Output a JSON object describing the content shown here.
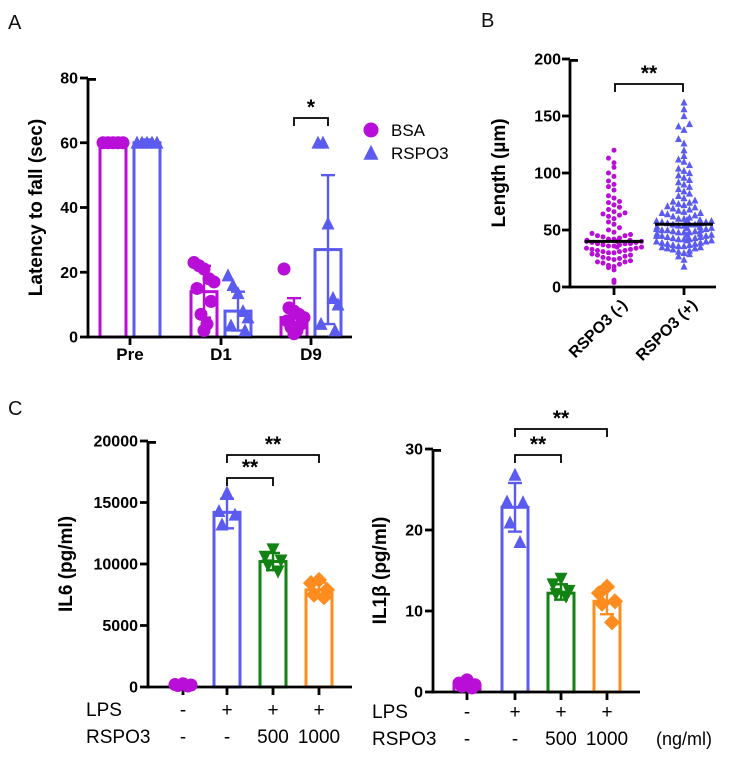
{
  "figure": {
    "panel_a_label": "A",
    "panel_b_label": "B",
    "panel_c_label": "C"
  },
  "palette": {
    "magenta": "#B80ED8",
    "blue": "#5B5BF0",
    "green": "#128212",
    "orange": "#FF8C1E",
    "axis": "#000000"
  },
  "chart_data": [
    {
      "id": "latency",
      "type": "bar",
      "title": "",
      "ylabel": "Latency to fall (sec)",
      "ylim": [
        0,
        80
      ],
      "yticks": [
        0,
        20,
        40,
        60,
        80
      ],
      "categories": [
        "Pre",
        "D1",
        "D9"
      ],
      "legend": [
        {
          "label": "BSA",
          "marker": "circle",
          "color": "magenta"
        },
        {
          "label": "RSPO3",
          "marker": "triangle",
          "color": "blue"
        }
      ],
      "series": [
        {
          "name": "BSA",
          "marker": "circle",
          "color": "magenta",
          "bars": [
            60,
            14,
            6
          ],
          "errors": [
            [
              59,
              61
            ],
            [
              6,
              22
            ],
            [
              0,
              12
            ]
          ],
          "points": [
            [
              60,
              60,
              60,
              60,
              60
            ],
            [
              23,
              22,
              21,
              18,
              17,
              15,
              11,
              7,
              4,
              2
            ],
            [
              21,
              9,
              8,
              7,
              6,
              5,
              4,
              3,
              2,
              1
            ]
          ]
        },
        {
          "name": "RSPO3",
          "marker": "triangle",
          "color": "blue",
          "bars": [
            60,
            8,
            27
          ],
          "errors": [
            [
              59,
              61
            ],
            [
              2,
              14
            ],
            [
              4,
              50
            ]
          ],
          "points": [
            [
              60,
              60,
              60,
              60,
              60
            ],
            [
              19,
              16,
              13.5,
              8,
              6,
              3.5,
              2
            ],
            [
              60,
              60,
              35,
              12,
              10,
              4,
              2
            ]
          ]
        }
      ],
      "significance": [
        {
          "label": "*",
          "category": "D9"
        }
      ]
    },
    {
      "id": "length",
      "type": "scatter",
      "title": "",
      "ylabel": "Length (µm)",
      "ylim": [
        0,
        200
      ],
      "yticks": [
        0,
        50,
        100,
        150,
        200
      ],
      "groups": [
        {
          "label": "RSPO3 (-)",
          "marker": "circle",
          "color": "magenta",
          "median": 40,
          "values": [
            4,
            6,
            15,
            17,
            18,
            19,
            20,
            21,
            22,
            22,
            23,
            24,
            25,
            25,
            26,
            27,
            28,
            28,
            29,
            30,
            30,
            31,
            31,
            32,
            32,
            33,
            33,
            34,
            34,
            35,
            35,
            36,
            36,
            37,
            37,
            38,
            38,
            38,
            39,
            39,
            40,
            40,
            40,
            41,
            41,
            42,
            42,
            43,
            44,
            45,
            45,
            46,
            47,
            48,
            50,
            52,
            55,
            57,
            60,
            62,
            63,
            64,
            65,
            66,
            68,
            70,
            72,
            74,
            75,
            78,
            80,
            85,
            88,
            90,
            93,
            97,
            100,
            105,
            109,
            113,
            120
          ]
        },
        {
          "label": "RSPO3 (+)",
          "marker": "triangle",
          "color": "blue",
          "median": 55,
          "values": [
            18,
            24,
            27,
            29,
            30,
            31,
            32,
            33,
            34,
            34,
            35,
            35,
            36,
            36,
            37,
            37,
            38,
            38,
            39,
            39,
            40,
            40,
            41,
            41,
            42,
            42,
            42,
            43,
            43,
            44,
            44,
            45,
            45,
            45,
            46,
            46,
            47,
            47,
            48,
            48,
            48,
            49,
            49,
            50,
            50,
            50,
            51,
            51,
            52,
            52,
            53,
            53,
            54,
            54,
            55,
            55,
            55,
            56,
            56,
            57,
            57,
            58,
            58,
            59,
            59,
            60,
            60,
            61,
            62,
            63,
            64,
            65,
            65,
            66,
            67,
            68,
            69,
            70,
            71,
            72,
            73,
            74,
            75,
            76,
            78,
            80,
            82,
            84,
            86,
            88,
            90,
            92,
            94,
            96,
            98,
            100,
            102,
            104,
            107,
            110,
            112,
            115,
            120,
            126,
            130,
            138,
            141,
            143,
            150,
            156,
            162
          ]
        }
      ],
      "significance": [
        {
          "label": "**",
          "g1": 0,
          "g2": 1
        }
      ]
    },
    {
      "id": "il6",
      "type": "bar",
      "title": "",
      "ylabel": "IL6 (pg/ml)",
      "ylim": [
        0,
        20000
      ],
      "yticks": [
        0,
        5000,
        10000,
        15000,
        20000
      ],
      "groups": [
        {
          "marker": "circle",
          "color": "magenta",
          "bar": 150,
          "err": null,
          "points": [
            260,
            200,
            160,
            120,
            80
          ]
        },
        {
          "marker": "triangle",
          "color": "blue",
          "bar": 14200,
          "err": [
            12900,
            15300
          ],
          "points": [
            15800,
            14300,
            14000,
            13200
          ]
        },
        {
          "marker": "triangle-down",
          "color": "green",
          "bar": 10200,
          "err": [
            9500,
            10900
          ],
          "points": [
            11200,
            10600,
            10300,
            9900,
            9400
          ]
        },
        {
          "marker": "diamond",
          "color": "orange",
          "bar": 7900,
          "err": [
            7400,
            8500
          ],
          "points": [
            8700,
            8450,
            7900,
            7500,
            7300
          ]
        }
      ],
      "xrows": [
        {
          "label": "LPS",
          "values": [
            "-",
            "+",
            "+",
            "+"
          ]
        },
        {
          "label": "RSPO3",
          "values": [
            "-",
            "-",
            "500",
            "1000"
          ]
        }
      ],
      "significance": [
        {
          "label": "**",
          "g1": 1,
          "g2": 2
        },
        {
          "label": "**",
          "g1": 1,
          "g2": 3
        }
      ]
    },
    {
      "id": "il1b",
      "type": "bar",
      "title": "",
      "ylabel": "IL1β (pg/ml)",
      "ylim": [
        0,
        30
      ],
      "yticks": [
        0,
        10,
        20,
        30
      ],
      "groups": [
        {
          "marker": "circle",
          "color": "magenta",
          "bar": 0.8,
          "err": null,
          "points": [
            1.5,
            1.1,
            0.9,
            0.7,
            0.5
          ]
        },
        {
          "marker": "triangle",
          "color": "blue",
          "bar": 22.8,
          "err": [
            19.8,
            25.8
          ],
          "points": [
            26.8,
            23.5,
            23.4,
            20.9,
            18.5
          ]
        },
        {
          "marker": "triangle-down",
          "color": "green",
          "bar": 12.2,
          "err": [
            11.4,
            13.3
          ],
          "points": [
            14.0,
            13.3,
            12.5,
            12.1,
            11.8
          ]
        },
        {
          "marker": "diamond",
          "color": "orange",
          "bar": 11.2,
          "err": [
            9.6,
            12.9
          ],
          "points": [
            13.0,
            12.2,
            11.2,
            10.9,
            8.6
          ]
        }
      ],
      "xrows": [
        {
          "label": "LPS",
          "values": [
            "-",
            "+",
            "+",
            "+"
          ]
        },
        {
          "label": "RSPO3",
          "values": [
            "-",
            "-",
            "500",
            "1000"
          ],
          "suffix": "(ng/ml)"
        }
      ],
      "significance": [
        {
          "label": "**",
          "g1": 1,
          "g2": 2
        },
        {
          "label": "**",
          "g1": 1,
          "g2": 3
        }
      ]
    }
  ]
}
